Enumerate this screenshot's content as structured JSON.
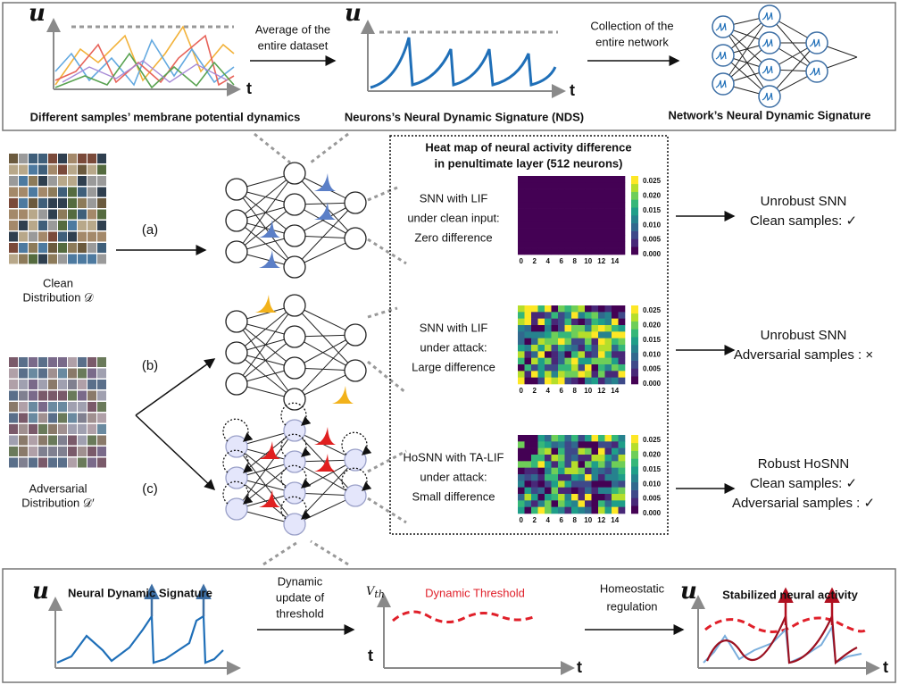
{
  "top": {
    "panels": [
      {
        "axis_label": "u",
        "time_label": "t",
        "caption": "Different samples’ membrane potential dynamics"
      },
      {
        "axis_label": "u",
        "time_label": "t",
        "caption": "Neurons’s Neural Dynamic Signature (NDS)"
      },
      {
        "caption": "Network’s Neural Dynamic Signature"
      }
    ],
    "arrows": [
      [
        "Average of the",
        "entire dataset"
      ],
      [
        "Collection of the",
        "entire network"
      ]
    ]
  },
  "middle": {
    "distributions": [
      [
        "Clean",
        "Distribution 𝒟"
      ],
      [
        "Adversarial",
        "Distribution 𝒟′"
      ]
    ],
    "cases": [
      "(a)",
      "(b)",
      "(c)"
    ],
    "heatmap_title": [
      "Heat map of neural activity difference",
      "in penultimate layer (512 neurons)"
    ],
    "heatmaps": [
      {
        "description": [
          "SNN with LIF",
          "under clean input:",
          "Zero difference"
        ]
      },
      {
        "description": [
          "SNN with LIF",
          "under attack:",
          "Large difference"
        ]
      },
      {
        "description": [
          "HoSNN with TA-LIF",
          "under attack:",
          "Small difference"
        ]
      }
    ],
    "x_ticks": [
      "0",
      "2",
      "4",
      "6",
      "8",
      "10",
      "12",
      "14"
    ],
    "colorbar_ticks": [
      "0.025",
      "0.020",
      "0.015",
      "0.010",
      "0.005",
      "0.000"
    ],
    "outcomes": [
      [
        "Unrobust SNN",
        "Clean samples: ✓"
      ],
      [
        "Unrobust SNN",
        "Adversarial samples : ×"
      ],
      [
        "Robust HoSNN",
        "Clean samples: ✓",
        "Adversarial samples : ✓"
      ]
    ]
  },
  "bottom": {
    "panels": [
      {
        "axis_label": "u",
        "title": "Neural Dynamic Signature"
      },
      {
        "axis_label": "V",
        "axis_sub": "th",
        "left_label": "t",
        "time_label": "t",
        "curve_label": "Dynamic  Threshold"
      },
      {
        "axis_label": "u",
        "title": "Stabilized neural activity",
        "time_label": "t"
      }
    ],
    "arrows": [
      [
        "Dynamic",
        "update of",
        "threshold"
      ],
      [
        "Homeostatic",
        "regulation"
      ]
    ]
  }
}
